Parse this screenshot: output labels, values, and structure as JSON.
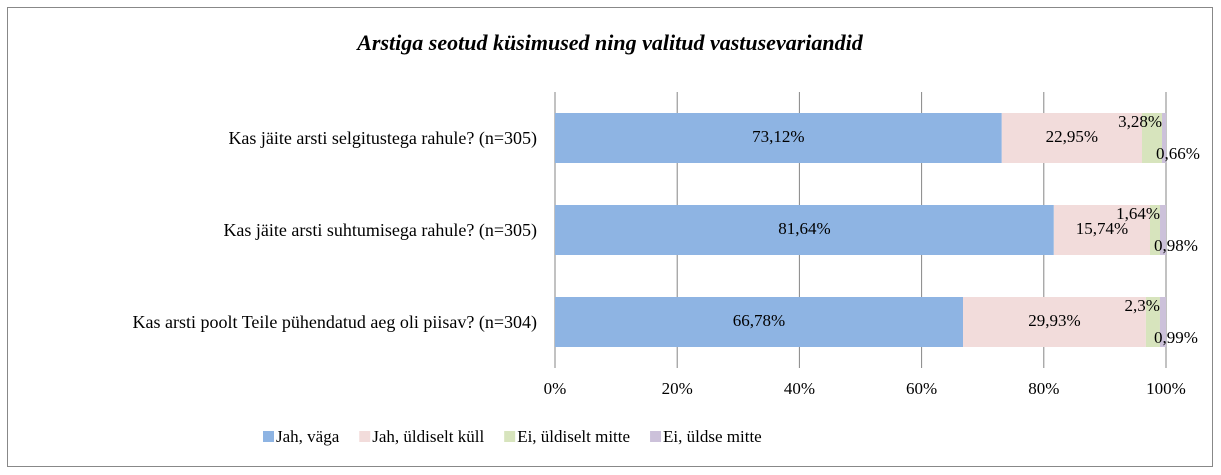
{
  "chart_data": {
    "type": "stacked_bar_horizontal",
    "title": "Arstiga seotud küsimused ning valitud vastusevariandid",
    "categories": [
      "Kas jäite arsti selgitustega rahule? (n=305)",
      "Kas jäite arsti suhtumisega rahule? (n=305)",
      "Kas arsti poolt Teile pühendatud aeg oli piisav? (n=304)"
    ],
    "series": [
      {
        "name": "Jah, väga",
        "color": "#8eb4e3",
        "values": [
          73.12,
          81.64,
          66.78
        ],
        "value_labels": [
          "73,12%",
          "81,64%",
          "66,78%"
        ]
      },
      {
        "name": "Jah, üldiselt küll",
        "color": "#f2dcdb",
        "values": [
          22.95,
          15.74,
          29.93
        ],
        "value_labels": [
          "22,95%",
          "15,74%",
          "29,93%"
        ]
      },
      {
        "name": "Ei, üldiselt mitte",
        "color": "#d7e4bd",
        "values": [
          3.28,
          1.64,
          2.3
        ],
        "value_labels": [
          "3,28%",
          "1,64%",
          "2,3%"
        ]
      },
      {
        "name": "Ei, üldse mitte",
        "color": "#ccc1da",
        "values": [
          0.66,
          0.98,
          0.99
        ],
        "value_labels": [
          "0,66%",
          "0,98%",
          "0,99%"
        ]
      }
    ],
    "xlim": [
      0,
      100
    ],
    "xticks": [
      {
        "value": 0,
        "label": "0%"
      },
      {
        "value": 20,
        "label": "20%"
      },
      {
        "value": 40,
        "label": "40%"
      },
      {
        "value": 60,
        "label": "60%"
      },
      {
        "value": 80,
        "label": "80%"
      },
      {
        "value": 100,
        "label": "100%"
      }
    ],
    "grid": true,
    "legend": "bottom"
  }
}
